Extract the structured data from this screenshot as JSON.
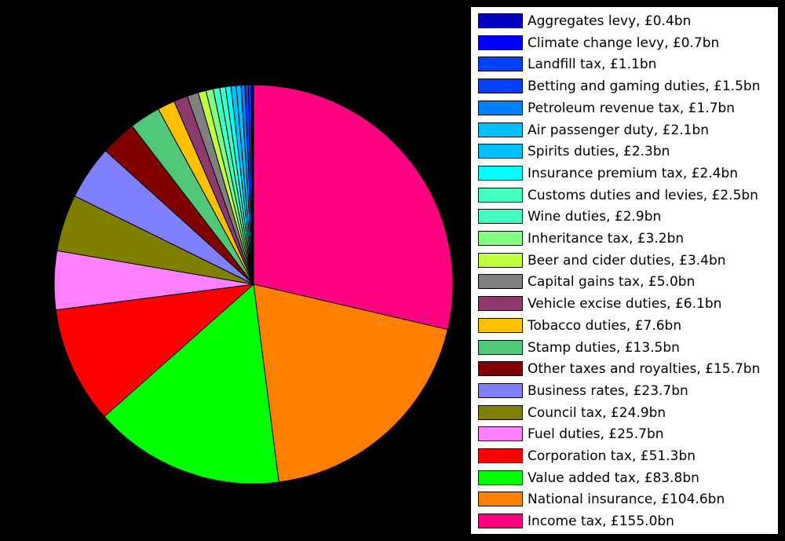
{
  "chart_data": {
    "type": "pie",
    "legend_position": "right",
    "slices": [
      {
        "label": "Income tax, £155.0bn",
        "value": 155.0,
        "color": "#ff0080"
      },
      {
        "label": "National insurance, £104.6bn",
        "value": 104.6,
        "color": "#ff8000"
      },
      {
        "label": "Value added tax, £83.8bn",
        "value": 83.8,
        "color": "#00ff00"
      },
      {
        "label": "Corporation tax, £51.3bn",
        "value": 51.3,
        "color": "#ff0000"
      },
      {
        "label": "Fuel duties, £25.7bn",
        "value": 25.7,
        "color": "#ff80ff"
      },
      {
        "label": "Council tax, £24.9bn",
        "value": 24.9,
        "color": "#808000"
      },
      {
        "label": "Business rates, £23.7bn",
        "value": 23.7,
        "color": "#8080ff"
      },
      {
        "label": "Other taxes and royalties, £15.7bn",
        "value": 15.7,
        "color": "#800000"
      },
      {
        "label": "Stamp duties, £13.5bn",
        "value": 13.5,
        "color": "#50c878"
      },
      {
        "label": "Tobacco duties, £7.6bn",
        "value": 7.6,
        "color": "#ffc000"
      },
      {
        "label": "Vehicle excise duties, £6.1bn",
        "value": 6.1,
        "color": "#8b3a6b"
      },
      {
        "label": "Capital gains tax, £5.0bn",
        "value": 5.0,
        "color": "#808080"
      },
      {
        "label": "Beer and cider duties, £3.4bn",
        "value": 3.4,
        "color": "#c0ff40"
      },
      {
        "label": "Inheritance tax, £3.2bn",
        "value": 3.2,
        "color": "#80ff80"
      },
      {
        "label": "Wine duties, £2.9bn",
        "value": 2.9,
        "color": "#40ffc0"
      },
      {
        "label": "Customs duties and levies, £2.5bn",
        "value": 2.5,
        "color": "#40ffc0"
      },
      {
        "label": "Insurance premium tax, £2.4bn",
        "value": 2.4,
        "color": "#00ffff"
      },
      {
        "label": "Spirits duties, £2.3bn",
        "value": 2.3,
        "color": "#00c0ff"
      },
      {
        "label": "Air passenger duty, £2.1bn",
        "value": 2.1,
        "color": "#00c0ff"
      },
      {
        "label": "Petroleum revenue tax, £1.7bn",
        "value": 1.7,
        "color": "#0080ff"
      },
      {
        "label": "Betting and gaming duties, £1.5bn",
        "value": 1.5,
        "color": "#0040ff"
      },
      {
        "label": "Landfill tax, £1.1bn",
        "value": 1.1,
        "color": "#0040ff"
      },
      {
        "label": "Climate change levy, £0.7bn",
        "value": 0.7,
        "color": "#0000ff"
      },
      {
        "label": "Aggregates levy, £0.4bn",
        "value": 0.4,
        "color": "#0000c0"
      }
    ]
  }
}
